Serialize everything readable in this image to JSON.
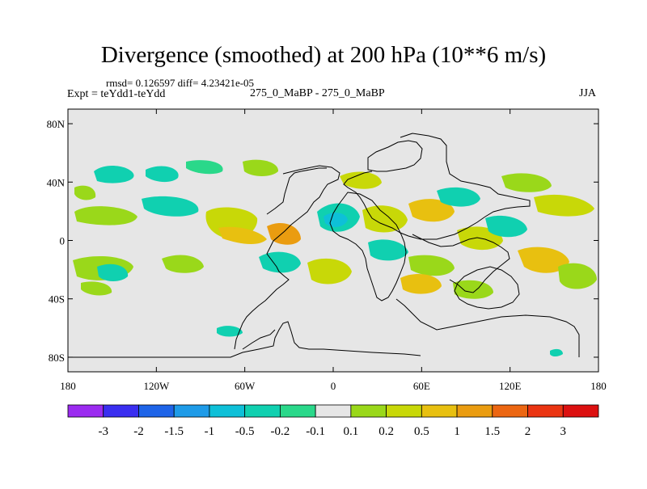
{
  "chart_data": {
    "type": "contour_map",
    "title": "Divergence (smoothed) at 200 hPa (10**6 m/s)",
    "stats_text": "rmsd= 0.126597 diff= 4.23421e-05",
    "experiment_text": "Expt = teYdd1-teYdd",
    "run_text": "275_0_MaBP - 275_0_MaBP",
    "season_text": "JJA",
    "x_range": [
      -180,
      180
    ],
    "y_range": [
      -90,
      90
    ],
    "x_ticks": [
      {
        "value": -180,
        "label": "180"
      },
      {
        "value": -120,
        "label": "120W"
      },
      {
        "value": -60,
        "label": "60W"
      },
      {
        "value": 0,
        "label": "0"
      },
      {
        "value": 60,
        "label": "60E"
      },
      {
        "value": 120,
        "label": "120E"
      },
      {
        "value": 180,
        "label": "180"
      }
    ],
    "y_ticks": [
      {
        "value": 80,
        "label": "80N"
      },
      {
        "value": 40,
        "label": "40N"
      },
      {
        "value": 0,
        "label": "0"
      },
      {
        "value": -40,
        "label": "40S"
      },
      {
        "value": -80,
        "label": "80S"
      }
    ],
    "colorbar": {
      "levels": [
        "-3",
        "-2",
        "-1.5",
        "-1",
        "-0.5",
        "-0.2",
        "-0.1",
        "0.1",
        "0.2",
        "0.5",
        "1",
        "1.5",
        "2",
        "3"
      ],
      "colors": [
        "#9b2bf0",
        "#3a2ef0",
        "#1e64e8",
        "#1e9be8",
        "#0ec0d8",
        "#10d0b0",
        "#2ad88a",
        "#e6e6e6",
        "#9ad81a",
        "#c8d808",
        "#e8c010",
        "#ea9c10",
        "#ec6612",
        "#ea3412",
        "#dc1010"
      ]
    },
    "background_color": "#e6e6e6"
  }
}
